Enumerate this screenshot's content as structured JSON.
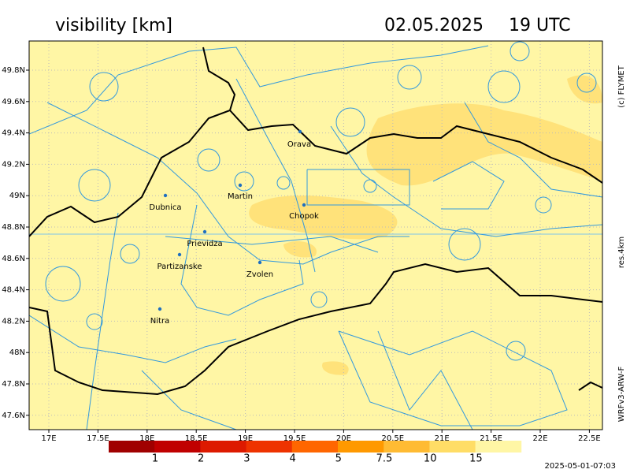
{
  "header": {
    "title": "visibility [km]",
    "date": "02.05.2025",
    "time": "19 UTC"
  },
  "side": {
    "copyright": "(c) FLYMET",
    "resolution": "res.4km",
    "model": "WRFv3-ARW-F"
  },
  "map": {
    "cities": [
      "Orava",
      "Martin",
      "Dubnica",
      "Chopok",
      "Prievidza",
      "Partizanske",
      "Zvolen",
      "Nitra"
    ],
    "lat_labels": [
      "49.8N",
      "49.6N",
      "49.4N",
      "49.2N",
      "49N",
      "48.8N",
      "48.6N",
      "48.4N",
      "48.2N",
      "48N",
      "47.8N",
      "47.6N"
    ],
    "lon_labels": [
      "17E",
      "17.5E",
      "18E",
      "18.5E",
      "19E",
      "19.5E",
      "20E",
      "20.5E",
      "21E",
      "21.5E",
      "22E",
      "22.5E"
    ]
  },
  "colorbar": {
    "colors": [
      "#a00000",
      "#c00000",
      "#dd1a00",
      "#ee3300",
      "#ff6600",
      "#ff9900",
      "#ffbb33",
      "#ffdd66",
      "#fff6a5"
    ],
    "labels": [
      "1",
      "2",
      "3",
      "4",
      "5",
      "7.5",
      "10",
      "15"
    ]
  },
  "footer": {
    "timestamp": "2025-05-01-07:03"
  }
}
